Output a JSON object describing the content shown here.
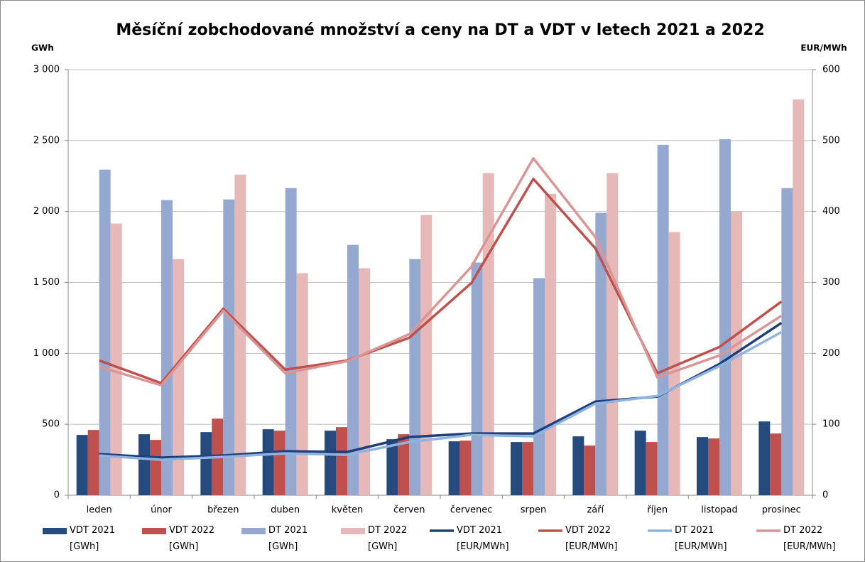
{
  "chart_data": {
    "type": "bar",
    "title": "Měsíční zobchodované množství a ceny na DT a VDT v letech 2021 a 2022",
    "y_label": "GWh",
    "y2_label": "EUR/MWh",
    "categories": [
      "leden",
      "únor",
      "březen",
      "duben",
      "květen",
      "červen",
      "červenec",
      "srpen",
      "září",
      "říjen",
      "listopad",
      "prosinec"
    ],
    "ylim": [
      0,
      3000
    ],
    "yticks": [
      0,
      500,
      {
        "value": 1000,
        "label": "1 000"
      },
      {
        "value": 1500,
        "label": "1 500"
      },
      {
        "value": 2000,
        "label": "2 000"
      },
      {
        "value": 2500,
        "label": "2 500"
      },
      {
        "value": 3000,
        "label": "3 000"
      }
    ],
    "y2lim": [
      0,
      600
    ],
    "y2ticks": [
      0,
      100,
      200,
      300,
      400,
      500,
      600
    ],
    "grid": true,
    "series": [
      {
        "name": "VDT 2021 [GWh]",
        "type": "bar",
        "color": "#254a7e",
        "values": [
          425,
          430,
          445,
          465,
          455,
          395,
          380,
          375,
          415,
          455,
          410,
          520
        ]
      },
      {
        "name": "VDT 2022 [GWh]",
        "type": "bar",
        "color": "#c0504d",
        "values": [
          460,
          390,
          540,
          455,
          480,
          430,
          385,
          375,
          350,
          375,
          400,
          435
        ]
      },
      {
        "name": "DT 2021 [GWh]",
        "type": "bar",
        "color": "#95a9d0",
        "values": [
          2295,
          2080,
          2085,
          2165,
          1765,
          1665,
          1640,
          1530,
          1990,
          2470,
          2510,
          2165
        ]
      },
      {
        "name": "DT 2022 [GWh]",
        "type": "bar",
        "color": "#e6b9b8",
        "values": [
          1915,
          1665,
          2260,
          1565,
          1600,
          1975,
          2270,
          2125,
          2270,
          1855,
          2000,
          2790
        ]
      },
      {
        "name": "VDT 2021 [EUR/MWh]",
        "type": "line",
        "axis": "y2",
        "color": "#1f3f7a",
        "values": [
          58,
          53,
          56,
          62,
          61,
          82,
          87,
          87,
          132,
          139,
          185,
          243
        ]
      },
      {
        "name": "VDT 2022 [EUR/MWh]",
        "type": "line",
        "axis": "y2",
        "color": "#c0504d",
        "values": [
          190,
          158,
          263,
          177,
          190,
          222,
          299,
          446,
          348,
          172,
          209,
          273
        ]
      },
      {
        "name": "DT 2021 [EUR/MWh]",
        "type": "line",
        "axis": "y2",
        "color": "#8db4e2",
        "values": [
          56,
          50,
          54,
          59,
          57,
          75,
          85,
          83,
          129,
          140,
          182,
          230
        ]
      },
      {
        "name": "DT 2022 [EUR/MWh]",
        "type": "line",
        "axis": "y2",
        "color": "#d99694",
        "values": [
          181,
          155,
          260,
          172,
          189,
          227,
          322,
          475,
          364,
          166,
          197,
          253
        ]
      }
    ]
  }
}
